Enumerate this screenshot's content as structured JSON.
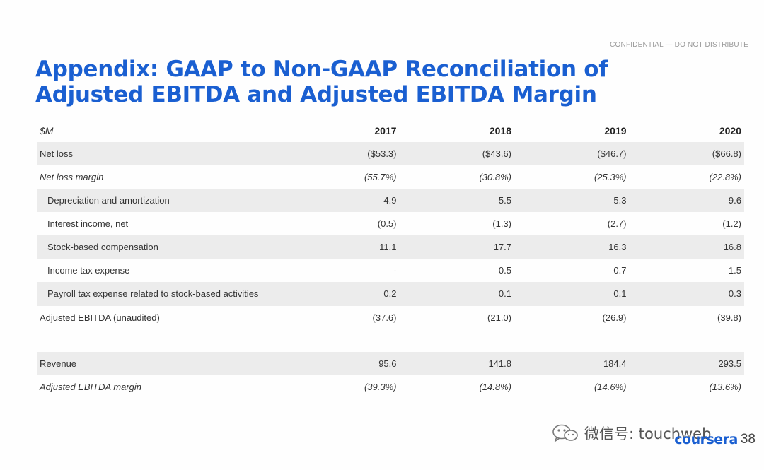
{
  "header": {
    "confidential": "CONFIDENTIAL — DO NOT DISTRIBUTE",
    "title": "Appendix: GAAP to Non-GAAP Reconciliation of Adjusted EBITDA and Adjusted EBITDA Margin"
  },
  "table": {
    "unit_label": "$M",
    "years": [
      "2017",
      "2018",
      "2019",
      "2020"
    ],
    "rows": [
      {
        "label": "Net loss",
        "values": [
          "($53.3)",
          "($43.6)",
          "($46.7)",
          "($66.8)"
        ]
      },
      {
        "label": "Net loss margin",
        "values": [
          "(55.7%)",
          "(30.8%)",
          "(25.3%)",
          "(22.8%)"
        ]
      },
      {
        "label": "Depreciation and amortization",
        "values": [
          "4.9",
          "5.5",
          "5.3",
          "9.6"
        ]
      },
      {
        "label": "Interest income, net",
        "values": [
          "(0.5)",
          "(1.3)",
          "(2.7)",
          "(1.2)"
        ]
      },
      {
        "label": "Stock-based compensation",
        "values": [
          "11.1",
          "17.7",
          "16.3",
          "16.8"
        ]
      },
      {
        "label": "Income tax expense",
        "values": [
          "-",
          "0.5",
          "0.7",
          "1.5"
        ]
      },
      {
        "label": "Payroll tax expense related to stock-based activities",
        "values": [
          "0.2",
          "0.1",
          "0.1",
          "0.3"
        ]
      },
      {
        "label": "Adjusted EBITDA (unaudited)",
        "values": [
          "(37.6)",
          "(21.0)",
          "(26.9)",
          "(39.8)"
        ]
      },
      {
        "label": "Revenue",
        "values": [
          "95.6",
          "141.8",
          "184.4",
          "293.5"
        ]
      },
      {
        "label": "Adjusted EBITDA margin",
        "values": [
          "(39.3%)",
          "(14.8%)",
          "(14.6%)",
          "(13.6%)"
        ]
      }
    ]
  },
  "footer": {
    "brand": "coursera",
    "page_number": "38",
    "watermark_text": "微信号: touchweb",
    "watermark_icon": "wechat-icon"
  },
  "colors": {
    "title": "#1a5fd1",
    "row_shade": "#ececec",
    "brand": "#1a5fd1"
  }
}
